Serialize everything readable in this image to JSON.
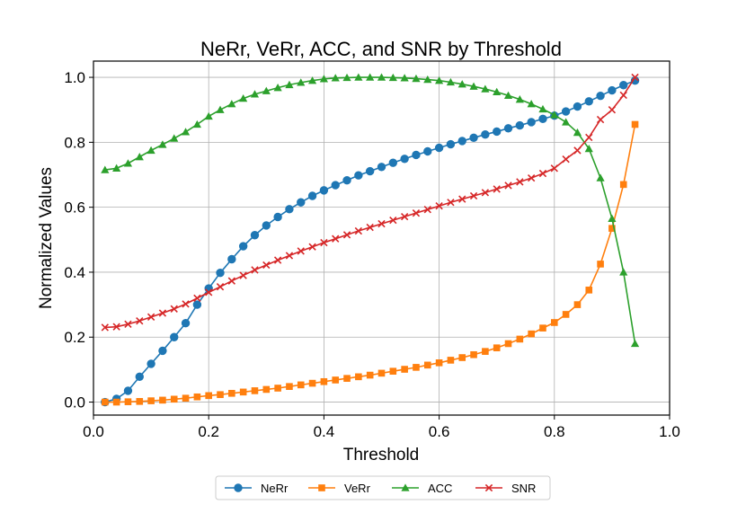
{
  "chart_data": {
    "type": "line",
    "title": "NeRr, VeRr, ACC, and SNR by Threshold",
    "xlabel": "Threshold",
    "ylabel": "Normalized Values",
    "xlim": [
      0.0,
      1.0
    ],
    "ylim": [
      -0.04,
      1.05
    ],
    "xticks": [
      0.0,
      0.2,
      0.4,
      0.6,
      0.8,
      1.0
    ],
    "xtick_labels": [
      "0.0",
      "0.2",
      "0.4",
      "0.6",
      "0.8",
      "1.0"
    ],
    "yticks": [
      0.0,
      0.2,
      0.4,
      0.6,
      0.8,
      1.0
    ],
    "ytick_labels": [
      "0.0",
      "0.2",
      "0.4",
      "0.6",
      "0.8",
      "1.0"
    ],
    "grid": true,
    "legend_position": "bottom-center",
    "x": [
      0.02,
      0.04,
      0.06,
      0.08,
      0.1,
      0.12,
      0.14,
      0.16,
      0.18,
      0.2,
      0.22,
      0.24,
      0.26,
      0.28,
      0.3,
      0.32,
      0.34,
      0.36,
      0.38,
      0.4,
      0.42,
      0.44,
      0.46,
      0.48,
      0.5,
      0.52,
      0.54,
      0.56,
      0.58,
      0.6,
      0.62,
      0.64,
      0.66,
      0.68,
      0.7,
      0.72,
      0.74,
      0.76,
      0.78,
      0.8,
      0.82,
      0.84,
      0.86,
      0.88,
      0.9,
      0.92,
      0.94
    ],
    "series": [
      {
        "name": "NeRr",
        "color": "#1f77b4",
        "marker": "circle",
        "values": [
          0.0,
          0.01,
          0.035,
          0.078,
          0.118,
          0.158,
          0.2,
          0.243,
          0.3,
          0.35,
          0.398,
          0.44,
          0.48,
          0.514,
          0.544,
          0.57,
          0.594,
          0.615,
          0.635,
          0.652,
          0.668,
          0.683,
          0.698,
          0.711,
          0.724,
          0.737,
          0.749,
          0.761,
          0.772,
          0.783,
          0.794,
          0.804,
          0.814,
          0.824,
          0.833,
          0.843,
          0.852,
          0.862,
          0.872,
          0.882,
          0.895,
          0.91,
          0.926,
          0.943,
          0.96,
          0.976,
          0.99
        ]
      },
      {
        "name": "VeRr",
        "color": "#ff7f0e",
        "marker": "square",
        "values": [
          0.0,
          0.0,
          0.001,
          0.002,
          0.004,
          0.006,
          0.009,
          0.012,
          0.016,
          0.02,
          0.023,
          0.027,
          0.031,
          0.035,
          0.039,
          0.043,
          0.048,
          0.053,
          0.058,
          0.063,
          0.068,
          0.073,
          0.078,
          0.083,
          0.089,
          0.095,
          0.101,
          0.107,
          0.114,
          0.121,
          0.129,
          0.137,
          0.146,
          0.156,
          0.167,
          0.18,
          0.194,
          0.21,
          0.228,
          0.245,
          0.27,
          0.3,
          0.345,
          0.425,
          0.535,
          0.67,
          0.855
        ]
      },
      {
        "name": "ACC",
        "color": "#2ca02c",
        "marker": "triangle",
        "values": [
          0.715,
          0.72,
          0.735,
          0.755,
          0.775,
          0.793,
          0.812,
          0.832,
          0.855,
          0.88,
          0.9,
          0.918,
          0.935,
          0.948,
          0.958,
          0.968,
          0.977,
          0.984,
          0.99,
          0.995,
          0.998,
          0.999,
          1.0,
          1.0,
          1.0,
          0.999,
          0.998,
          0.996,
          0.993,
          0.99,
          0.985,
          0.979,
          0.972,
          0.964,
          0.955,
          0.944,
          0.932,
          0.918,
          0.902,
          0.884,
          0.862,
          0.83,
          0.78,
          0.69,
          0.565,
          0.4,
          0.18
        ]
      },
      {
        "name": "SNR",
        "color": "#d62728",
        "marker": "x",
        "values": [
          0.23,
          0.232,
          0.24,
          0.25,
          0.262,
          0.274,
          0.287,
          0.302,
          0.32,
          0.338,
          0.355,
          0.373,
          0.39,
          0.407,
          0.422,
          0.437,
          0.451,
          0.465,
          0.478,
          0.491,
          0.503,
          0.515,
          0.527,
          0.538,
          0.549,
          0.56,
          0.571,
          0.582,
          0.593,
          0.604,
          0.615,
          0.625,
          0.635,
          0.645,
          0.656,
          0.667,
          0.678,
          0.69,
          0.704,
          0.72,
          0.748,
          0.775,
          0.815,
          0.87,
          0.9,
          0.945,
          1.0
        ]
      }
    ]
  }
}
